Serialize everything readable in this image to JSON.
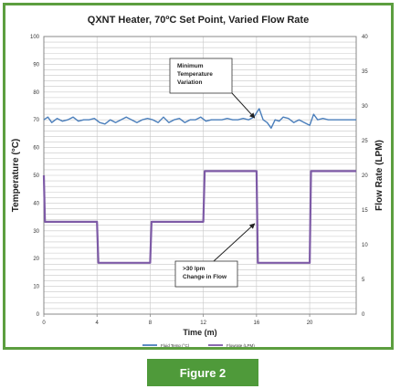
{
  "figure_label": "Figure 2",
  "chart_data": {
    "type": "line",
    "title": "QXNT Heater, 70ºC Set Point, Varied Flow Rate",
    "xlabel": "Time (m)",
    "ylabel_left": "Temperature (°C)",
    "ylabel_right": "Flow Rate (LPM)",
    "xlim": [
      0,
      23.5
    ],
    "ylim_left": [
      0,
      100
    ],
    "ylim_right": [
      0,
      40
    ],
    "x_ticks": [
      0,
      4,
      8,
      12,
      16,
      20
    ],
    "y_ticks_left": [
      0,
      10,
      20,
      30,
      40,
      50,
      60,
      70,
      80,
      90,
      100
    ],
    "y_ticks_right": [
      0,
      5,
      10,
      15,
      20,
      25,
      30,
      35,
      40
    ],
    "grid": true,
    "legend_position": "bottom",
    "series": [
      {
        "name": "Fluid Temp (°C)",
        "axis": "left",
        "color": "#4a7ebb",
        "x": [
          0,
          0.3,
          0.6,
          1.0,
          1.4,
          1.8,
          2.2,
          2.6,
          3.0,
          3.4,
          3.8,
          4.2,
          4.6,
          5.0,
          5.4,
          5.8,
          6.2,
          6.6,
          7.0,
          7.4,
          7.8,
          8.2,
          8.6,
          9.0,
          9.4,
          9.8,
          10.2,
          10.6,
          11.0,
          11.4,
          11.8,
          12.2,
          12.6,
          13.0,
          13.4,
          13.8,
          14.2,
          14.6,
          15.0,
          15.4,
          15.8,
          16.2,
          16.5,
          16.8,
          17.1,
          17.4,
          17.7,
          18.0,
          18.4,
          18.8,
          19.2,
          19.6,
          20.0,
          20.3,
          20.6,
          21.0,
          21.4,
          21.8,
          22.2,
          22.6,
          23.0,
          23.5
        ],
        "values": [
          70,
          71,
          69,
          70.5,
          69.5,
          70,
          71,
          69.5,
          70,
          70,
          70.5,
          69,
          68.5,
          70,
          69,
          70,
          71,
          70,
          69,
          70,
          70.5,
          70,
          69,
          71,
          69,
          70,
          70.5,
          69,
          70,
          70,
          71,
          69.5,
          70,
          70,
          70,
          70.5,
          70,
          70,
          70.5,
          70,
          71,
          74,
          70,
          69,
          67,
          70,
          69.5,
          71,
          70.5,
          69,
          70,
          69,
          68,
          72,
          70,
          70.5,
          70,
          70,
          70,
          70,
          70,
          70
        ]
      },
      {
        "name": "Flowrate (LPM)",
        "axis": "right",
        "color": "#7d5aa6",
        "x": [
          0,
          0.08,
          0.15,
          4.0,
          4.1,
          8.0,
          8.1,
          12.0,
          12.1,
          16.0,
          16.1,
          20.0,
          20.1,
          23.5
        ],
        "values": [
          20,
          13.3,
          13.3,
          13.3,
          7.4,
          7.4,
          13.3,
          13.3,
          20.6,
          20.6,
          7.4,
          7.4,
          20.6,
          20.6
        ]
      }
    ],
    "annotations": [
      {
        "text_lines": [
          "Minimum",
          "Temperature",
          "Variation"
        ],
        "points_to": {
          "x": 16,
          "y": 70,
          "axis": "left"
        }
      },
      {
        "text_lines": [
          ">30 lpm",
          "Change in Flow"
        ],
        "points_to": {
          "x": 16,
          "y": 13.3,
          "axis": "right"
        }
      }
    ]
  }
}
